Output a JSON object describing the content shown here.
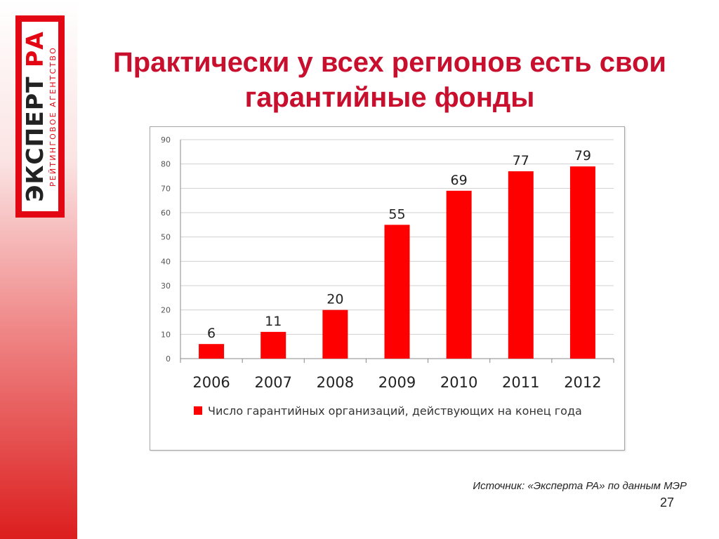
{
  "slide": {
    "title": "Практически у всех регионов есть свои гарантийные фонды",
    "source": "Источник: «Эксперта РА» по данным МЭР",
    "page_number": "27"
  },
  "logo": {
    "main_black": "ЭКСПЕРТ",
    "main_red": "РА",
    "sub": "РЕЙТИНГОВОЕ АГЕНТСТВО"
  },
  "chart_data": {
    "type": "bar",
    "categories": [
      "2006",
      "2007",
      "2008",
      "2009",
      "2010",
      "2011",
      "2012"
    ],
    "series": [
      {
        "name": "Число гарантийных организаций, действующих на конец года",
        "values": [
          6,
          11,
          20,
          55,
          69,
          77,
          79
        ],
        "color": "#ff0000"
      }
    ],
    "ylim": [
      0,
      90
    ],
    "yticks": [
      0,
      10,
      20,
      30,
      40,
      50,
      60,
      70,
      80,
      90
    ],
    "grid": true,
    "data_labels": true,
    "legend_position": "bottom"
  },
  "colors": {
    "accent": "#e30613",
    "title": "#c8102e",
    "bar": "#ff0000"
  }
}
